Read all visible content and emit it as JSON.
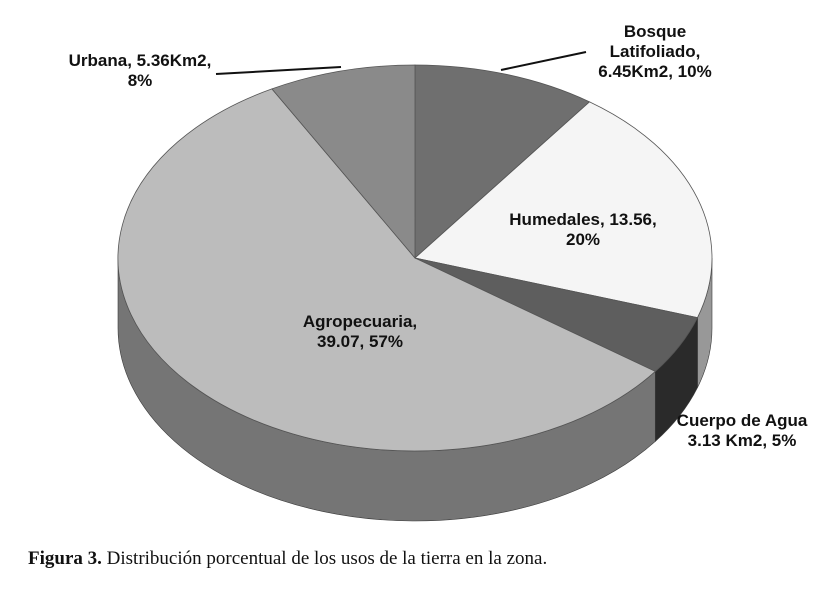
{
  "chart_data": {
    "type": "pie",
    "style": "3d",
    "slices": [
      {
        "name": "Bosque Latifoliado",
        "value": 6.45,
        "percent": 10,
        "label_lines": [
          "Bosque",
          "Latifoliado,",
          "6.45Km2, 10%"
        ],
        "color": "#6f6f6f"
      },
      {
        "name": "Humedales",
        "value": 13.56,
        "percent": 20,
        "label_lines": [
          "Humedales, 13.56,",
          "20%"
        ],
        "color": "#f5f5f5"
      },
      {
        "name": "Cuerpo de Agua",
        "value": 3.13,
        "percent": 5,
        "label_lines": [
          "Cuerpo de Agua",
          "3.13 Km2, 5%"
        ],
        "color": "#5e5e5e"
      },
      {
        "name": "Agropecuaria",
        "value": 39.07,
        "percent": 57,
        "label_lines": [
          "Agropecuaria,",
          "39.07, 57%"
        ],
        "color": "#bcbcbc"
      },
      {
        "name": "Urbana",
        "value": 5.36,
        "percent": 8,
        "label_lines": [
          "Urbana, 5.36Km2,",
          "8%"
        ],
        "color": "#8a8a8a"
      }
    ]
  },
  "caption": {
    "label": "Figura 3.",
    "text": " Distribución porcentual de los usos de la tierra en la zona."
  }
}
